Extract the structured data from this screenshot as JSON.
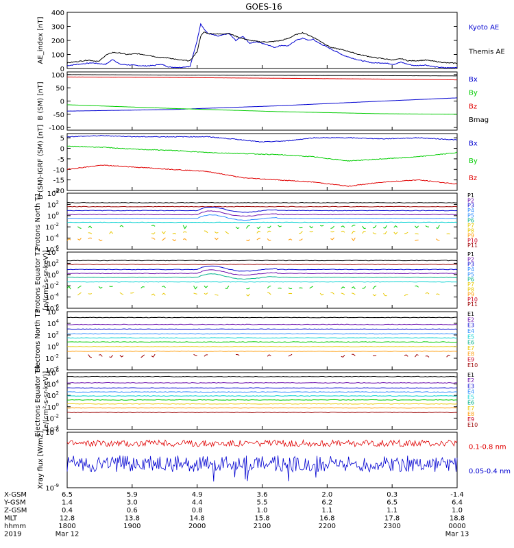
{
  "title": "GOES-16",
  "colors": {
    "black": "#000000",
    "blue": "#0000d0",
    "green": "#00cc00",
    "red": "#e00000",
    "purple": "#6a0dad",
    "lightblue": "#2f8cff",
    "cyan": "#00d0d0",
    "teal": "#00b08a",
    "yellow": "#e8c800",
    "orange": "#ff9900",
    "crimson": "#cc0022",
    "darkred": "#9a0000"
  },
  "chart_data": [
    {
      "type": "line",
      "id": "ae",
      "ylabel": "AE_index [nT]",
      "ylim": [
        0,
        400
      ],
      "yticks": [
        "400",
        "300",
        "200",
        "100",
        "0"
      ],
      "series": [
        {
          "name": "Kyoto AE",
          "color": "blue",
          "x": [
            0,
            6,
            14,
            22,
            26,
            30,
            36,
            44,
            50,
            52,
            55,
            58,
            64,
            70,
            74,
            76,
            78,
            80,
            86,
            92,
            96,
            100,
            104,
            108,
            114,
            118,
            122,
            126,
            130,
            134,
            138,
            140,
            142,
            150,
            158,
            166,
            174,
            180,
            186,
            190,
            194,
            198,
            204,
            210,
            216,
            222
          ],
          "y": [
            20,
            30,
            40,
            30,
            65,
            30,
            25,
            18,
            22,
            30,
            25,
            10,
            8,
            15,
            200,
            320,
            280,
            250,
            230,
            250,
            200,
            230,
            180,
            190,
            170,
            150,
            165,
            160,
            200,
            215,
            200,
            210,
            190,
            140,
            90,
            60,
            40,
            40,
            30,
            45,
            30,
            20,
            25,
            10,
            5,
            8
          ]
        },
        {
          "name": "Themis AE",
          "color": "black",
          "x": [
            0,
            6,
            12,
            18,
            22,
            26,
            30,
            34,
            40,
            46,
            52,
            58,
            64,
            70,
            74,
            76,
            78,
            80,
            86,
            92,
            98,
            104,
            110,
            116,
            122,
            126,
            130,
            134,
            138,
            142,
            150,
            158,
            166,
            174,
            180,
            186,
            190,
            194,
            198,
            204,
            210,
            216,
            222
          ],
          "y": [
            40,
            50,
            60,
            50,
            95,
            115,
            110,
            100,
            105,
            95,
            80,
            75,
            60,
            55,
            120,
            230,
            260,
            250,
            245,
            250,
            220,
            200,
            190,
            190,
            200,
            215,
            240,
            255,
            235,
            210,
            150,
            130,
            100,
            80,
            70,
            60,
            70,
            55,
            55,
            60,
            50,
            40,
            38
          ]
        }
      ],
      "legend": [
        "Kyoto AE",
        "Themis AE"
      ]
    },
    {
      "type": "line",
      "id": "bsm",
      "ylabel": "B (SM) [nT]",
      "ylim": [
        -110,
        110
      ],
      "yticks": [
        "100",
        "50",
        "0",
        "-50",
        "-100"
      ],
      "series": [
        {
          "name": "Bx",
          "color": "blue",
          "x": [
            0,
            60,
            120,
            180,
            222
          ],
          "y": [
            -38,
            -32,
            -18,
            0,
            12
          ]
        },
        {
          "name": "By",
          "color": "green",
          "x": [
            0,
            60,
            120,
            180,
            222
          ],
          "y": [
            -14,
            -28,
            -40,
            -48,
            -50
          ]
        },
        {
          "name": "Bz",
          "color": "red",
          "x": [
            0,
            60,
            120,
            180,
            222
          ],
          "y": [
            91,
            89,
            86,
            83,
            80
          ]
        },
        {
          "name": "Bmag",
          "color": "black",
          "x": [
            0,
            60,
            120,
            180,
            222
          ],
          "y": [
            100,
            98,
            97,
            96,
            95
          ]
        }
      ],
      "legend": [
        "Bx",
        "By",
        "Bz",
        "Bmag"
      ]
    },
    {
      "type": "line",
      "id": "bigrf",
      "ylabel": "B (SM)-IGRF (SM) [nT]",
      "ylim": [
        -20,
        7
      ],
      "yticks": [
        "5",
        "0",
        "-5",
        "-10",
        "-15",
        "-20"
      ],
      "series": [
        {
          "name": "Bx",
          "color": "blue",
          "x": [
            0,
            20,
            40,
            60,
            80,
            100,
            110,
            125,
            140,
            160,
            180,
            200,
            222
          ],
          "y": [
            5.5,
            6,
            5.5,
            5.5,
            5.5,
            4,
            3,
            3.5,
            5,
            5,
            4.5,
            5,
            4
          ]
        },
        {
          "name": "By",
          "color": "green",
          "x": [
            0,
            20,
            40,
            60,
            80,
            100,
            120,
            140,
            160,
            180,
            200,
            222
          ],
          "y": [
            1,
            0.5,
            -0.5,
            -1,
            -2,
            -2.5,
            -3,
            -4,
            -6,
            -5,
            -4,
            -2
          ]
        },
        {
          "name": "Bz",
          "color": "red",
          "x": [
            0,
            20,
            40,
            60,
            80,
            100,
            120,
            140,
            160,
            180,
            200,
            222
          ],
          "y": [
            -10,
            -8,
            -9,
            -10,
            -11,
            -14,
            -15,
            -16,
            -18,
            -16,
            -15,
            -17
          ]
        }
      ],
      "legend": [
        "Bx",
        "By",
        "Bz"
      ]
    },
    {
      "type": "line",
      "id": "pn",
      "ylabel": "Protons North T1",
      "ylim_exp": [
        -6,
        4
      ],
      "yticks": [
        "10^4",
        "10^2",
        "10^0",
        "10^-2",
        "10^-4",
        "10^-6"
      ],
      "levels": [
        2.3,
        1.6,
        0.9,
        0.2,
        -0.5,
        -1.2,
        -2.0,
        -3.0,
        -4.2
      ],
      "colors": [
        "black",
        "darkred",
        "blue",
        "purple",
        "lightblue",
        "cyan",
        "green",
        "yellow",
        "orange"
      ],
      "legend": [
        "P1",
        "P2",
        "P3",
        "P4",
        "P5",
        "P6",
        "P7",
        "P8",
        "P9",
        "P10",
        "P11"
      ],
      "legend_colors": [
        "black",
        "purple",
        "blue",
        "lightblue",
        "lightblue",
        "teal",
        "yellow",
        "yellow",
        "orange",
        "crimson",
        "darkred"
      ]
    },
    {
      "type": "line",
      "id": "pe",
      "ylabel": "Protons Equator T2",
      "ylim_exp": [
        -6,
        4
      ],
      "yticks": [
        "10^4",
        "10^2",
        "10^0",
        "10^-2",
        "10^-4",
        "10^-6"
      ],
      "levels": [
        2.5,
        1.8,
        0.9,
        0.2,
        -0.5,
        -1.3,
        -2.3,
        -3.5
      ],
      "colors": [
        "black",
        "darkred",
        "blue",
        "purple",
        "teal",
        "cyan",
        "green",
        "yellow"
      ],
      "legend": [
        "P1",
        "P2",
        "P3",
        "P4",
        "P5",
        "P6",
        "P7",
        "P8",
        "P9",
        "P10",
        "P11"
      ],
      "legend_colors": [
        "black",
        "purple",
        "blue",
        "lightblue",
        "lightblue",
        "teal",
        "yellow",
        "yellow",
        "orange",
        "crimson",
        "darkred"
      ]
    },
    {
      "type": "line",
      "id": "en",
      "ylabel": "Electrons North T3",
      "ylim_exp": [
        -4,
        6
      ],
      "yticks": [
        "10^6",
        "10^4",
        "10^2",
        "10^0",
        "10^-2",
        "10^-4"
      ],
      "levels": [
        5.0,
        3.8,
        3.0,
        2.2,
        1.5,
        0.8,
        0.0,
        -0.8,
        -1.6
      ],
      "colors": [
        "black",
        "purple",
        "blue",
        "lightblue",
        "cyan",
        "green",
        "yellow",
        "orange",
        "darkred"
      ],
      "legend": [
        "E1",
        "E2",
        "E3",
        "E4",
        "E5",
        "E6",
        "E7",
        "E8",
        "E9",
        "E10"
      ],
      "legend_colors": [
        "black",
        "purple",
        "blue",
        "lightblue",
        "cyan",
        "teal",
        "yellow",
        "orange",
        "crimson",
        "darkred"
      ]
    },
    {
      "type": "line",
      "id": "ee",
      "ylabel": "Electrons Equator T4",
      "ylim_exp": [
        -4,
        6
      ],
      "yticks": [
        "10^6",
        "10^4",
        "10^2",
        "10^0",
        "10^-2",
        "10^-4"
      ],
      "levels": [
        5.3,
        4.2,
        3.3,
        2.6,
        1.9,
        1.2,
        0.5,
        -0.2,
        -1.0
      ],
      "colors": [
        "black",
        "purple",
        "blue",
        "lightblue",
        "cyan",
        "green",
        "yellow",
        "orange",
        "darkred"
      ],
      "legend": [
        "E1",
        "E2",
        "E3",
        "E4",
        "E5",
        "E6",
        "E7",
        "E8",
        "E9",
        "E10"
      ],
      "legend_colors": [
        "black",
        "purple",
        "blue",
        "lightblue",
        "cyan",
        "teal",
        "yellow",
        "orange",
        "crimson",
        "darkred"
      ]
    },
    {
      "type": "line",
      "id": "xray",
      "ylabel": "Xray flux [W/m2]",
      "ylim_exp": [
        -9,
        -6
      ],
      "yticks": [
        "10^-6",
        "10^-9"
      ],
      "series": [
        {
          "name": "0.1-0.8 nm",
          "color": "red",
          "level": -6.6,
          "noise": 0.18
        },
        {
          "name": "0.05-0.4 nm",
          "color": "blue",
          "level": -7.7,
          "noise": 0.45
        }
      ],
      "legend": [
        "0.1-0.8 nm",
        "0.05-0.4 nm"
      ]
    }
  ],
  "unit_labels": {
    "protons": "[p/(cm²-s-sr-keV)]",
    "electrons": "[e/(cm²-s-sr-keV)]"
  },
  "xaxis": {
    "rows": [
      {
        "label": "X-GSM",
        "values": [
          "6.5",
          "5.9",
          "4.9",
          "3.6",
          "2.0",
          "0.3",
          "-1.4"
        ]
      },
      {
        "label": "Y-GSM",
        "values": [
          "1.4",
          "3.0",
          "4.4",
          "5.5",
          "6.2",
          "6.5",
          "6.4"
        ]
      },
      {
        "label": "Z-GSM",
        "values": [
          "0.4",
          "0.6",
          "0.8",
          "1.0",
          "1.1",
          "1.1",
          "1.0"
        ]
      },
      {
        "label": "MLT",
        "values": [
          "12.8",
          "13.8",
          "14.8",
          "15.8",
          "16.8",
          "17.8",
          "18.8"
        ]
      },
      {
        "label": "hhmm",
        "values": [
          "1800",
          "1900",
          "2000",
          "2100",
          "2200",
          "2300",
          "0000"
        ]
      },
      {
        "label": "2019",
        "values": [
          "Mar 12",
          "",
          "",
          "",
          "",
          "",
          "Mar 13"
        ]
      }
    ]
  }
}
